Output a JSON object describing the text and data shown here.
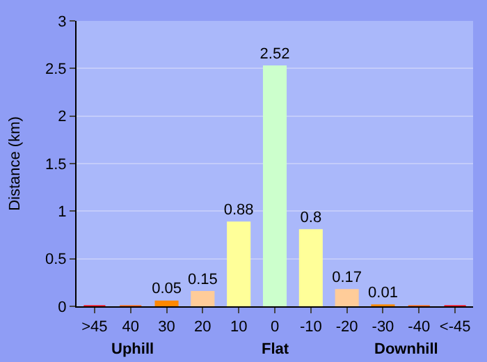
{
  "chart_data": {
    "type": "bar",
    "ylabel": "Distance (km)",
    "categories": [
      ">45",
      "40",
      "30",
      "20",
      "10",
      "0",
      "-10",
      "-20",
      "-30",
      "-40",
      "<-45"
    ],
    "values": [
      0,
      0,
      0.05,
      0.15,
      0.88,
      2.52,
      0.8,
      0.17,
      0.01,
      0,
      0
    ],
    "value_labels": [
      null,
      null,
      "0.05",
      "0.15",
      "0.88",
      "2.52",
      "0.8",
      "0.17",
      "0.01",
      null,
      null
    ],
    "colors": [
      "#ff0000",
      "#ff6600",
      "#ff8800",
      "#ffcc99",
      "#ffff99",
      "#ccffcc",
      "#ffff99",
      "#ffcc99",
      "#ff8800",
      "#ff6600",
      "#ff0000"
    ],
    "ylim": [
      0,
      3
    ],
    "yticks": [
      0,
      0.5,
      1,
      1.5,
      2,
      {
        "value": 2.5,
        "label": "2.5"
      },
      3
    ],
    "grid": "y",
    "annotations": [
      "Uphill",
      "Flat",
      "Downhill"
    ]
  }
}
